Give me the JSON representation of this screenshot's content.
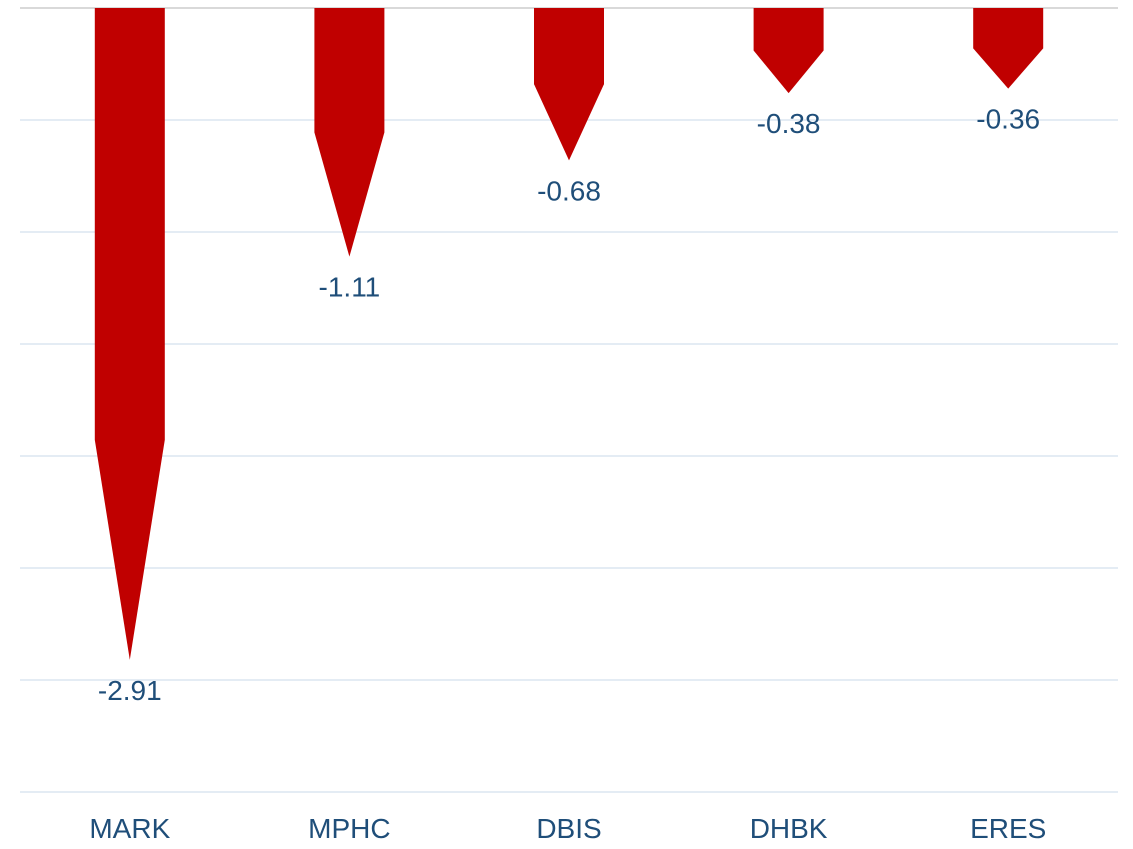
{
  "chart_data": {
    "type": "bar",
    "categories": [
      "MARK",
      "MPHC",
      "DBIS",
      "DHBK",
      "ERES"
    ],
    "values": [
      -2.91,
      -1.11,
      -0.68,
      -0.38,
      -0.36
    ],
    "value_labels": [
      "-2.91",
      "-1.11",
      "-0.68",
      "-0.38",
      "-0.36"
    ],
    "ylim": [
      -3.5,
      0
    ],
    "grid": true,
    "bar_shape": "arrow-down",
    "colors": {
      "bar": "#c00000",
      "label": "#1f4e79",
      "grid": "#dce6f0",
      "axis": "#d9d9d9"
    }
  }
}
